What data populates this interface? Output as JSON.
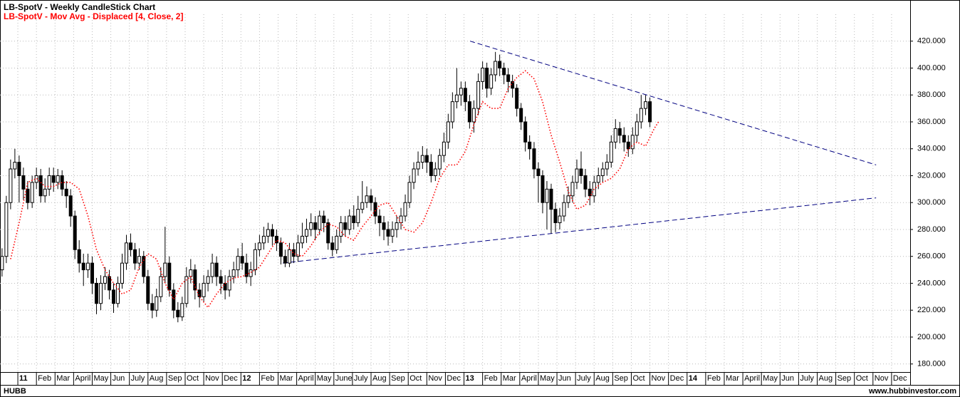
{
  "chart_data": {
    "type": "candlestick",
    "title": "LB-SpotV - Weekly CandleStick Chart",
    "subtitle": "LB-SpotV - Mov Avg - Displaced [4, Close, 2]",
    "up_color": "#ffffff",
    "down_color": "#000000",
    "x": [
      -0.85,
      -0.62,
      -0.39,
      -0.16,
      0.07,
      0.3,
      0.53,
      0.77,
      1,
      1.23,
      1.46,
      1.69,
      1.92,
      2.15,
      2.38,
      2.61,
      2.84,
      3.07,
      3.3,
      3.53,
      3.77,
      4,
      4.23,
      4.46,
      4.69,
      4.92,
      5.15,
      5.38,
      5.61,
      5.84,
      6.07,
      6.3,
      6.53,
      6.77,
      7,
      7.23,
      7.46,
      7.69,
      7.92,
      8.15,
      8.38,
      8.61,
      8.84,
      9.07,
      9.3,
      9.53,
      9.77,
      10,
      10.23,
      10.46,
      10.69,
      10.92,
      11.15,
      11.38,
      11.61,
      11.84,
      12.07,
      12.3,
      12.53,
      12.77,
      13,
      13.23,
      13.46,
      13.69,
      13.92,
      14.15,
      14.38,
      14.61,
      14.84,
      15.07,
      15.3,
      15.53,
      15.77,
      16,
      16.23,
      16.46,
      16.69,
      16.92,
      17.15,
      17.38,
      17.61,
      17.84,
      18.07,
      18.3,
      18.53,
      18.77,
      19,
      19.23,
      19.46,
      19.69,
      19.92,
      20.15,
      20.38,
      20.61,
      20.84,
      21.07,
      21.3,
      21.53,
      21.77,
      22,
      22.23,
      22.46,
      22.69,
      22.92,
      23.15,
      23.38,
      23.61,
      23.84,
      24.07,
      24.3,
      24.53,
      24.77,
      25,
      25.23,
      25.46,
      25.69,
      25.92,
      26.15,
      26.38,
      26.61,
      26.84,
      27.07,
      27.3,
      27.53,
      27.77,
      28,
      28.23,
      28.46,
      28.69,
      28.92,
      29.15,
      29.38,
      29.61,
      29.84,
      30.07,
      30.3,
      30.53,
      30.77,
      31,
      31.23,
      31.46,
      31.69,
      31.92,
      32.15,
      32.38,
      32.61,
      32.84,
      33.07,
      33.3,
      33.53,
      33.77,
      34
    ],
    "open": [
      250,
      260,
      300,
      325,
      330,
      320,
      310,
      300,
      315,
      320,
      305,
      310,
      320,
      315,
      320,
      310,
      305,
      290,
      265,
      255,
      250,
      255,
      240,
      225,
      240,
      245,
      235,
      225,
      240,
      255,
      270,
      265,
      255,
      260,
      245,
      225,
      220,
      230,
      245,
      255,
      235,
      220,
      215,
      225,
      245,
      250,
      235,
      230,
      240,
      245,
      255,
      245,
      240,
      235,
      245,
      250,
      260,
      255,
      245,
      250,
      265,
      270,
      275,
      280,
      275,
      270,
      260,
      255,
      265,
      260,
      270,
      275,
      280,
      285,
      280,
      290,
      285,
      270,
      265,
      275,
      285,
      280,
      290,
      285,
      295,
      300,
      305,
      300,
      290,
      285,
      280,
      275,
      280,
      285,
      290,
      300,
      315,
      325,
      330,
      335,
      330,
      320,
      325,
      335,
      345,
      360,
      375,
      380,
      385,
      375,
      360,
      370,
      390,
      400,
      385,
      395,
      405,
      400,
      395,
      390,
      385,
      370,
      360,
      345,
      340,
      325,
      320,
      300,
      310,
      295,
      285,
      290,
      300,
      305,
      315,
      325,
      320,
      310,
      305,
      315,
      320,
      325,
      330,
      345,
      355,
      350,
      345,
      340,
      350,
      360,
      370,
      375
    ],
    "high": [
      266,
      305,
      332,
      340,
      335,
      326,
      316,
      320,
      326,
      325,
      318,
      326,
      326,
      325,
      324,
      316,
      310,
      294,
      272,
      262,
      262,
      260,
      244,
      246,
      252,
      250,
      240,
      245,
      262,
      276,
      277,
      270,
      266,
      264,
      250,
      232,
      236,
      252,
      282,
      260,
      240,
      226,
      230,
      252,
      258,
      254,
      240,
      246,
      250,
      262,
      260,
      250,
      246,
      250,
      256,
      266,
      270,
      262,
      256,
      270,
      276,
      282,
      285,
      284,
      280,
      274,
      265,
      270,
      270,
      276,
      285,
      288,
      292,
      290,
      294,
      294,
      288,
      275,
      280,
      290,
      290,
      295,
      298,
      305,
      316,
      312,
      310,
      304,
      295,
      290,
      286,
      286,
      290,
      296,
      306,
      320,
      330,
      338,
      342,
      340,
      336,
      330,
      340,
      352,
      366,
      382,
      400,
      390,
      390,
      380,
      376,
      396,
      405,
      404,
      400,
      412,
      410,
      404,
      400,
      395,
      388,
      374,
      364,
      350,
      345,
      330,
      324,
      316,
      314,
      300,
      296,
      306,
      312,
      320,
      332,
      338,
      325,
      316,
      320,
      326,
      330,
      336,
      350,
      362,
      360,
      356,
      350,
      356,
      366,
      380,
      380,
      378
    ],
    "low": [
      245,
      255,
      295,
      318,
      300,
      302,
      295,
      296,
      310,
      300,
      300,
      305,
      308,
      310,
      305,
      296,
      282,
      258,
      248,
      238,
      244,
      232,
      217,
      220,
      235,
      228,
      218,
      222,
      236,
      250,
      260,
      250,
      250,
      240,
      220,
      214,
      215,
      226,
      240,
      230,
      214,
      211,
      212,
      222,
      240,
      228,
      222,
      226,
      234,
      240,
      238,
      232,
      228,
      230,
      240,
      245,
      250,
      240,
      238,
      246,
      260,
      265,
      270,
      268,
      264,
      254,
      252,
      252,
      255,
      256,
      266,
      270,
      275,
      272,
      276,
      278,
      265,
      260,
      262,
      270,
      275,
      276,
      280,
      282,
      292,
      296,
      294,
      284,
      275,
      272,
      268,
      270,
      274,
      280,
      286,
      296,
      310,
      320,
      325,
      322,
      315,
      316,
      320,
      330,
      340,
      355,
      370,
      372,
      368,
      355,
      352,
      365,
      384,
      378,
      380,
      390,
      394,
      388,
      382,
      378,
      364,
      354,
      338,
      332,
      318,
      300,
      292,
      280,
      277,
      278,
      280,
      286,
      296,
      300,
      310,
      314,
      304,
      298,
      300,
      310,
      315,
      320,
      326,
      340,
      344,
      338,
      334,
      336,
      345,
      355,
      365,
      356
    ],
    "close": [
      260,
      300,
      325,
      330,
      320,
      310,
      300,
      315,
      320,
      305,
      310,
      320,
      315,
      320,
      310,
      305,
      290,
      265,
      255,
      250,
      255,
      240,
      225,
      240,
      245,
      235,
      225,
      240,
      255,
      270,
      265,
      255,
      260,
      245,
      225,
      220,
      230,
      245,
      255,
      235,
      220,
      215,
      225,
      245,
      250,
      235,
      230,
      240,
      245,
      255,
      245,
      240,
      235,
      245,
      250,
      260,
      255,
      245,
      250,
      265,
      270,
      275,
      280,
      275,
      270,
      260,
      255,
      265,
      260,
      270,
      275,
      280,
      285,
      280,
      290,
      285,
      270,
      265,
      275,
      285,
      280,
      290,
      285,
      295,
      300,
      305,
      300,
      290,
      285,
      280,
      275,
      280,
      285,
      290,
      300,
      315,
      325,
      330,
      335,
      330,
      320,
      325,
      335,
      345,
      360,
      375,
      380,
      385,
      375,
      360,
      370,
      390,
      400,
      385,
      395,
      405,
      400,
      395,
      390,
      385,
      370,
      360,
      345,
      340,
      325,
      320,
      300,
      310,
      295,
      285,
      290,
      300,
      305,
      315,
      325,
      320,
      310,
      305,
      315,
      320,
      325,
      330,
      345,
      355,
      350,
      345,
      340,
      350,
      360,
      370,
      375,
      360
    ],
    "moving_average": {
      "color": "#ff0000",
      "x": [
        -0.39,
        0.07,
        0.53,
        1,
        1.46,
        1.92,
        2.38,
        2.84,
        3.3,
        3.77,
        4.23,
        4.69,
        5.15,
        5.61,
        6.07,
        6.53,
        7,
        7.46,
        7.92,
        8.38,
        8.84,
        9.3,
        9.77,
        10.23,
        10.69,
        11.15,
        11.61,
        12.07,
        12.53,
        13,
        13.46,
        13.92,
        14.38,
        14.84,
        15.3,
        15.77,
        16.23,
        16.69,
        17.15,
        17.61,
        18.07,
        18.53,
        19,
        19.46,
        19.92,
        20.38,
        20.84,
        21.3,
        21.77,
        22.23,
        22.69,
        23.15,
        23.61,
        24.07,
        24.53,
        25,
        25.46,
        25.92,
        26.38,
        26.84,
        27.3,
        27.77,
        28.23,
        28.69,
        29.15,
        29.61,
        30.07,
        30.53,
        31,
        31.46,
        31.92,
        32.38,
        32.84,
        33.3,
        33.77,
        34.23,
        34.46
      ],
      "values": [
        258,
        285,
        315,
        318,
        312,
        312,
        315,
        315,
        310,
        290,
        265,
        250,
        240,
        232,
        235,
        252,
        262,
        258,
        240,
        228,
        240,
        245,
        230,
        222,
        232,
        240,
        244,
        245,
        248,
        252,
        262,
        272,
        270,
        262,
        260,
        268,
        278,
        284,
        282,
        275,
        272,
        282,
        290,
        298,
        300,
        290,
        280,
        278,
        285,
        300,
        318,
        328,
        328,
        338,
        358,
        375,
        370,
        370,
        385,
        393,
        398,
        392,
        375,
        350,
        330,
        308,
        295,
        298,
        310,
        315,
        318,
        325,
        340,
        345,
        342,
        355,
        360
      ]
    },
    "trendlines": [
      {
        "color": "#000080",
        "x": [
          24.33,
          46.17
        ],
        "values": [
          420,
          328
        ]
      },
      {
        "color": "#000080",
        "x": [
          14.25,
          46.17
        ],
        "values": [
          255,
          303.5
        ]
      }
    ],
    "xlim": [
      -0.96,
      48
    ],
    "ylim": [
      174,
      440
    ],
    "grid": true,
    "xticks": [
      {
        "value": 0,
        "label": "11"
      },
      {
        "value": 1,
        "label": "Feb"
      },
      {
        "value": 2,
        "label": "Mar"
      },
      {
        "value": 3,
        "label": "April"
      },
      {
        "value": 4,
        "label": "May"
      },
      {
        "value": 5,
        "label": "Jun"
      },
      {
        "value": 6,
        "label": "July"
      },
      {
        "value": 7,
        "label": "Aug"
      },
      {
        "value": 8,
        "label": "Sep"
      },
      {
        "value": 9,
        "label": "Oct"
      },
      {
        "value": 10,
        "label": "Nov"
      },
      {
        "value": 11,
        "label": "Dec"
      },
      {
        "value": 12,
        "label": "12"
      },
      {
        "value": 13,
        "label": "Feb"
      },
      {
        "value": 14,
        "label": "Mar"
      },
      {
        "value": 15,
        "label": "April"
      },
      {
        "value": 16,
        "label": "May"
      },
      {
        "value": 17,
        "label": "June"
      },
      {
        "value": 18,
        "label": "July"
      },
      {
        "value": 19,
        "label": "Aug"
      },
      {
        "value": 20,
        "label": "Sep"
      },
      {
        "value": 21,
        "label": "Oct"
      },
      {
        "value": 22,
        "label": "Nov"
      },
      {
        "value": 23,
        "label": "Dec"
      },
      {
        "value": 24,
        "label": "13"
      },
      {
        "value": 25,
        "label": "Feb"
      },
      {
        "value": 26,
        "label": "Mar"
      },
      {
        "value": 27,
        "label": "April"
      },
      {
        "value": 28,
        "label": "May"
      },
      {
        "value": 29,
        "label": "Jun"
      },
      {
        "value": 30,
        "label": "July"
      },
      {
        "value": 31,
        "label": "Aug"
      },
      {
        "value": 32,
        "label": "Sep"
      },
      {
        "value": 33,
        "label": "Oct"
      },
      {
        "value": 34,
        "label": "Nov"
      },
      {
        "value": 35,
        "label": "Dec"
      },
      {
        "value": 36,
        "label": "14"
      },
      {
        "value": 37,
        "label": "Feb"
      },
      {
        "value": 38,
        "label": "Mar"
      },
      {
        "value": 39,
        "label": "April"
      },
      {
        "value": 40,
        "label": "May"
      },
      {
        "value": 41,
        "label": "Jun"
      },
      {
        "value": 42,
        "label": "July"
      },
      {
        "value": 43,
        "label": "Aug"
      },
      {
        "value": 44,
        "label": "Sep"
      },
      {
        "value": 45,
        "label": "Oct"
      },
      {
        "value": 46,
        "label": "Nov"
      },
      {
        "value": 47,
        "label": "Dec"
      }
    ],
    "yticks": [
      {
        "value": 180,
        "label": "180.000"
      },
      {
        "value": 200,
        "label": "200.000"
      },
      {
        "value": 220,
        "label": "220.000"
      },
      {
        "value": 240,
        "label": "240.000"
      },
      {
        "value": 260,
        "label": "260.000"
      },
      {
        "value": 280,
        "label": "280.000"
      },
      {
        "value": 300,
        "label": "300.000"
      },
      {
        "value": 320,
        "label": "320.000"
      },
      {
        "value": 340,
        "label": "340.000"
      },
      {
        "value": 360,
        "label": "360.000"
      },
      {
        "value": 380,
        "label": "380.000"
      },
      {
        "value": 400,
        "label": "400.000"
      },
      {
        "value": 420,
        "label": "420.000"
      }
    ]
  },
  "footer": {
    "left": "HUBB",
    "right": "www.hubbinvestor.com"
  }
}
